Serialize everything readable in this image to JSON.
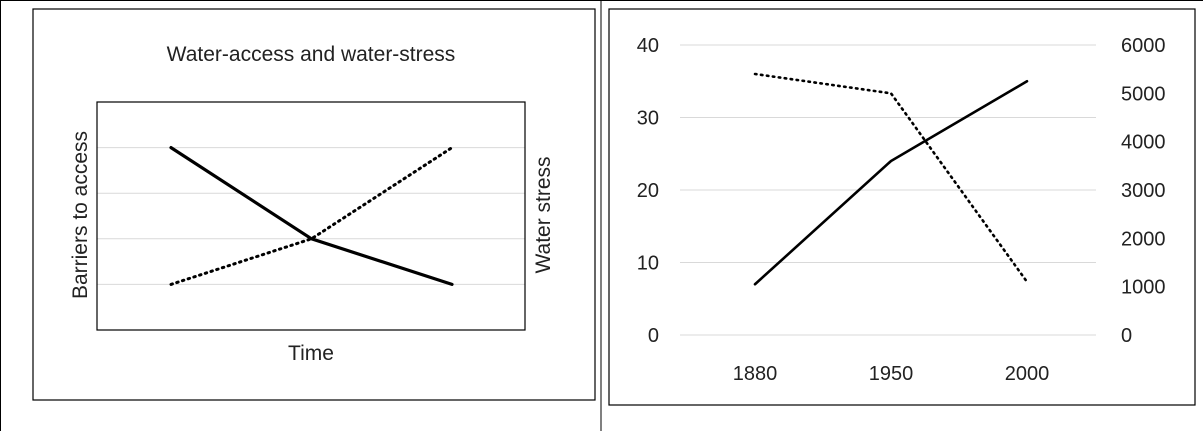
{
  "chart_data": [
    {
      "type": "line",
      "title": "Water-access and water-stress",
      "xlabel": "Time",
      "ylabel": "Barriers to access",
      "y2label": "Water stress",
      "x": [
        0,
        1,
        2
      ],
      "ylim": [
        0,
        5
      ],
      "grid": true,
      "legend": "none",
      "series": [
        {
          "values": [
            4,
            2,
            1
          ],
          "axis": "left",
          "style": "solid"
        },
        {
          "values": [
            1,
            2,
            4
          ],
          "axis": "left",
          "style": "dotted"
        }
      ]
    },
    {
      "type": "line",
      "categories": [
        "1880",
        "1950",
        "2000"
      ],
      "ylim": [
        0,
        40
      ],
      "y2lim": [
        0,
        6000
      ],
      "yticks": [
        "0",
        "10",
        "20",
        "30",
        "40"
      ],
      "y2ticks": [
        "0",
        "1000",
        "2000",
        "3000",
        "4000",
        "5000",
        "6000"
      ],
      "grid": true,
      "legend": "none",
      "series": [
        {
          "values": [
            7,
            24,
            35
          ],
          "axis": "left",
          "style": "solid"
        },
        {
          "values": [
            5400,
            5000,
            1100
          ],
          "axis": "right",
          "style": "dotted"
        }
      ]
    }
  ]
}
